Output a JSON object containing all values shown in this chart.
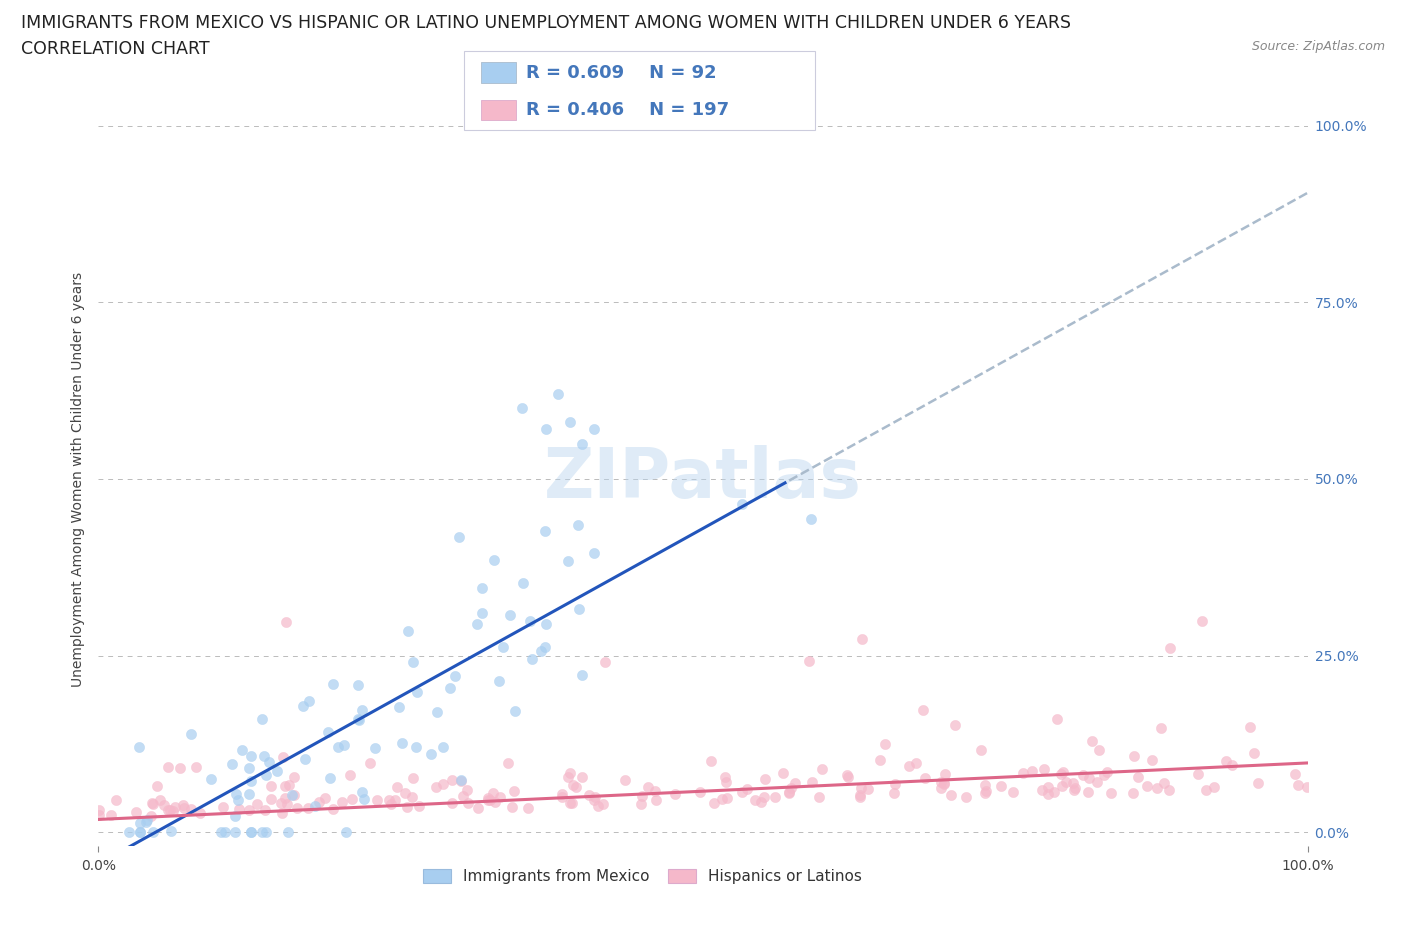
{
  "title_line1": "IMMIGRANTS FROM MEXICO VS HISPANIC OR LATINO UNEMPLOYMENT AMONG WOMEN WITH CHILDREN UNDER 6 YEARS",
  "title_line2": "CORRELATION CHART",
  "source": "Source: ZipAtlas.com",
  "ylabel": "Unemployment Among Women with Children Under 6 years",
  "xlim": [
    0.0,
    1.0
  ],
  "ylim": [
    -0.02,
    1.02
  ],
  "x_tick_labels": [
    "0.0%",
    "100.0%"
  ],
  "y_tick_labels": [
    "0.0%",
    "25.0%",
    "50.0%",
    "75.0%",
    "100.0%"
  ],
  "y_tick_positions": [
    0.0,
    0.25,
    0.5,
    0.75,
    1.0
  ],
  "blue_R": 0.609,
  "blue_N": 92,
  "pink_R": 0.406,
  "pink_N": 197,
  "blue_color": "#a8cef0",
  "pink_color": "#f5b8ca",
  "blue_line_color": "#2255bb",
  "pink_line_color": "#dd6688",
  "dash_color": "#aabbcc",
  "bg_color": "#ffffff",
  "grid_color": "#bbbbbb",
  "right_label_color": "#4477bb",
  "title_fontsize": 12.5,
  "subtitle_fontsize": 12.5,
  "axis_label_fontsize": 10,
  "tick_fontsize": 10,
  "legend_fontsize": 13
}
